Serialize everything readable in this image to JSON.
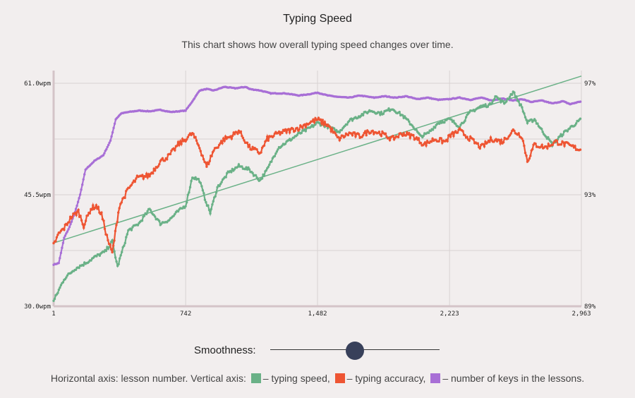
{
  "title": "Typing Speed",
  "subtitle": "This chart shows how overall typing speed changes over time.",
  "smoothness": {
    "label": "Smoothness:",
    "value": 0.5
  },
  "legend": {
    "prefix": "Horizontal axis: lesson number. Vertical axis:",
    "items": [
      {
        "text": "– typing speed,",
        "color": "#6ab187"
      },
      {
        "text": "– typing accuracy,",
        "color": "#ee5533"
      },
      {
        "text": "– number of keys in the lessons.",
        "color": "#a86fd6"
      }
    ]
  },
  "colors": {
    "background": "#f2eeee",
    "grid": "#d8d2d2",
    "axis": "#d4c4c8",
    "speed": "#6ab187",
    "accuracy": "#ee5533",
    "keys": "#a86fd6",
    "trend": "#6ab187"
  },
  "chart_data": {
    "type": "scatter",
    "title": "Typing Speed",
    "xlabel": "lesson number",
    "xlim": [
      1,
      2963
    ],
    "x_ticks": [
      {
        "value": 1,
        "label": "1"
      },
      {
        "value": 742,
        "label": "742"
      },
      {
        "value": 1482,
        "label": "1,482"
      },
      {
        "value": 2223,
        "label": "2,223"
      },
      {
        "value": 2963,
        "label": "2,963"
      }
    ],
    "y_left": {
      "ylim": [
        30,
        61
      ],
      "ticks": [
        {
          "value": 30,
          "label": "30.0wpm"
        },
        {
          "value": 45.5,
          "label": "45.5wpm"
        },
        {
          "value": 61,
          "label": "61.0wpm"
        }
      ]
    },
    "y_right": {
      "ylim": [
        89,
        97
      ],
      "ticks": [
        {
          "value": 89,
          "label": "89%"
        },
        {
          "value": 93,
          "label": "93%"
        },
        {
          "value": 97,
          "label": "97%"
        }
      ]
    },
    "trend_line": {
      "name": "typing speed trend",
      "x": [
        1,
        2963
      ],
      "y": [
        38.8,
        62.0
      ]
    },
    "series": [
      {
        "name": "typing speed",
        "axis": "left",
        "x": [
          1,
          60,
          120,
          180,
          230,
          290,
          330,
          360,
          420,
          480,
          540,
          600,
          650,
          700,
          742,
          780,
          820,
          850,
          880,
          920,
          980,
          1040,
          1100,
          1130,
          1160,
          1200,
          1260,
          1320,
          1380,
          1440,
          1482,
          1540,
          1600,
          1660,
          1720,
          1780,
          1840,
          1900,
          1960,
          2020,
          2060,
          2100,
          2160,
          2223,
          2280,
          2340,
          2400,
          2450,
          2480,
          2530,
          2580,
          2630,
          2660,
          2700,
          2740,
          2800,
          2860,
          2910,
          2963
        ],
        "y": [
          30.7,
          33.8,
          35.2,
          36.0,
          36.8,
          37.6,
          39.0,
          35.5,
          40.5,
          41.5,
          43.5,
          41.5,
          42.0,
          43.2,
          44.0,
          48.0,
          47.5,
          45.0,
          43.0,
          46.5,
          48.5,
          49.5,
          49.0,
          48.2,
          47.5,
          49.0,
          52.0,
          53.0,
          54.0,
          54.8,
          55.5,
          55.0,
          54.2,
          55.8,
          56.5,
          57.2,
          56.8,
          57.5,
          56.5,
          55.0,
          53.6,
          54.0,
          55.5,
          56.0,
          55.0,
          57.0,
          57.8,
          58.0,
          59.2,
          58.2,
          59.8,
          57.6,
          55.5,
          56.0,
          54.5,
          52.5,
          54.0,
          55.0,
          56.0
        ]
      },
      {
        "name": "typing accuracy",
        "axis": "right",
        "x": [
          1,
          30,
          60,
          100,
          140,
          170,
          210,
          240,
          270,
          300,
          330,
          370,
          420,
          470,
          540,
          600,
          650,
          700,
          742,
          780,
          820,
          860,
          900,
          960,
          1000,
          1040,
          1100,
          1160,
          1200,
          1260,
          1320,
          1380,
          1440,
          1482,
          1540,
          1600,
          1660,
          1720,
          1780,
          1840,
          1900,
          1960,
          2020,
          2080,
          2140,
          2200,
          2223,
          2280,
          2340,
          2400,
          2460,
          2520,
          2580,
          2630,
          2660,
          2700,
          2760,
          2820,
          2880,
          2963
        ],
        "y": [
          91.2,
          91.6,
          91.8,
          92.2,
          92.4,
          91.9,
          92.5,
          92.6,
          92.3,
          91.5,
          90.9,
          92.6,
          93.2,
          93.6,
          93.7,
          94.2,
          94.4,
          94.8,
          95.0,
          95.2,
          94.7,
          94.0,
          94.6,
          95.0,
          95.1,
          95.3,
          94.7,
          94.5,
          95.0,
          95.2,
          95.3,
          95.4,
          95.6,
          95.7,
          95.5,
          95.0,
          95.2,
          95.1,
          95.3,
          95.2,
          95.0,
          95.2,
          95.1,
          94.8,
          95.0,
          94.9,
          95.1,
          95.3,
          95.0,
          94.7,
          95.0,
          94.9,
          95.3,
          95.1,
          94.2,
          94.8,
          94.7,
          94.9,
          94.8,
          94.6
        ]
      },
      {
        "name": "number of keys in the lessons",
        "axis": "left",
        "x": [
          1,
          30,
          60,
          90,
          120,
          150,
          180,
          230,
          280,
          320,
          350,
          380,
          420,
          480,
          540,
          600,
          660,
          742,
          780,
          820,
          860,
          900,
          960,
          1020,
          1080,
          1100,
          1160,
          1220,
          1300,
          1380,
          1440,
          1482,
          1540,
          1600,
          1660,
          1720,
          1800,
          1860,
          1920,
          1980,
          2040,
          2100,
          2160,
          2223,
          2280,
          2340,
          2400,
          2460,
          2520,
          2580,
          2630,
          2680,
          2740,
          2800,
          2860,
          2900,
          2963
        ],
        "y": [
          35.8,
          36.0,
          39.5,
          41.0,
          43.0,
          45.5,
          49.0,
          50.2,
          51.0,
          53.0,
          56.0,
          56.8,
          57.0,
          57.2,
          57.1,
          57.3,
          57.0,
          57.2,
          58.5,
          60.0,
          60.2,
          60.0,
          60.5,
          60.3,
          60.5,
          60.2,
          60.0,
          59.6,
          59.6,
          59.3,
          59.5,
          59.7,
          59.3,
          59.1,
          59.0,
          59.3,
          59.0,
          59.2,
          59.0,
          59.2,
          58.8,
          59.0,
          58.7,
          58.8,
          59.0,
          58.7,
          59.0,
          58.6,
          58.9,
          58.6,
          58.8,
          58.4,
          58.6,
          58.2,
          58.5,
          58.1,
          58.5
        ]
      }
    ]
  }
}
